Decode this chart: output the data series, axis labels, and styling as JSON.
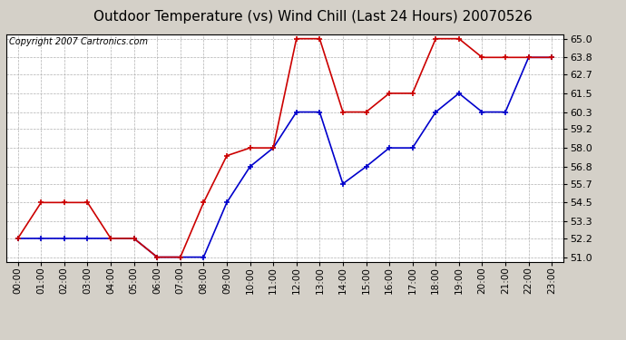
{
  "title": "Outdoor Temperature (vs) Wind Chill (Last 24 Hours) 20070526",
  "copyright": "Copyright 2007 Cartronics.com",
  "hours": [
    "00:00",
    "01:00",
    "02:00",
    "03:00",
    "04:00",
    "05:00",
    "06:00",
    "07:00",
    "08:00",
    "09:00",
    "10:00",
    "11:00",
    "12:00",
    "13:00",
    "14:00",
    "15:00",
    "16:00",
    "17:00",
    "18:00",
    "19:00",
    "20:00",
    "21:00",
    "22:00",
    "23:00"
  ],
  "temp": [
    52.2,
    54.5,
    54.5,
    54.5,
    52.2,
    52.2,
    51.0,
    51.0,
    54.5,
    57.5,
    58.0,
    58.0,
    65.0,
    65.0,
    60.3,
    60.3,
    61.5,
    61.5,
    65.0,
    65.0,
    63.8,
    63.8,
    63.8,
    63.8
  ],
  "windchill": [
    52.2,
    52.2,
    52.2,
    52.2,
    52.2,
    52.2,
    51.0,
    51.0,
    51.0,
    54.5,
    56.8,
    58.0,
    60.3,
    60.3,
    55.7,
    56.8,
    58.0,
    58.0,
    60.3,
    61.5,
    60.3,
    60.3,
    63.8,
    63.8
  ],
  "ylim_min": 51.0,
  "ylim_max": 65.0,
  "yticks": [
    51.0,
    52.2,
    53.3,
    54.5,
    55.7,
    56.8,
    58.0,
    59.2,
    60.3,
    61.5,
    62.7,
    63.8,
    65.0
  ],
  "temp_color": "#cc0000",
  "windchill_color": "#0000cc",
  "bg_color": "#d4d0c8",
  "plot_bg_color": "#ffffff",
  "grid_color": "#b0b0b0",
  "title_fontsize": 11,
  "copyright_fontsize": 7,
  "tick_fontsize": 7.5,
  "ytick_fontsize": 8
}
